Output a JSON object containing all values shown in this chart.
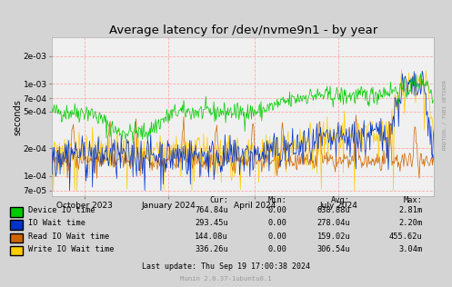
{
  "title": "Average latency for /dev/nvme9n1 - by year",
  "ylabel": "seconds",
  "background_color": "#d4d4d4",
  "plot_bg_color": "#f0f0f0",
  "grid_color": "#ffaaaa",
  "title_fontsize": 9.5,
  "legend_labels": [
    "Device IO time",
    "IO Wait time",
    "Read IO Wait time",
    "Write IO Wait time"
  ],
  "legend_colors": [
    "#00cc00",
    "#0033cc",
    "#cc6600",
    "#ffcc00"
  ],
  "line_colors": [
    "#00cc00",
    "#0033cc",
    "#cc6600",
    "#ffcc00"
  ],
  "stats_headers": [
    "Cur:",
    "Min:",
    "Avg:",
    "Max:"
  ],
  "stats_values": [
    [
      "764.84u",
      "0.00",
      "638.88u",
      "2.81m"
    ],
    [
      "293.45u",
      "0.00",
      "278.04u",
      "2.20m"
    ],
    [
      "144.08u",
      "0.00",
      "159.02u",
      "455.62u"
    ],
    [
      "336.26u",
      "0.00",
      "306.54u",
      "3.04m"
    ]
  ],
  "footer": "Last update: Thu Sep 19 17:00:38 2024",
  "munin_version": "Munin 2.0.37-1ubuntu0.1",
  "ytick_vals": [
    7e-05,
    0.0001,
    0.0002,
    0.0005,
    0.0007,
    0.001,
    0.002
  ],
  "ytick_labels": [
    "7e-05",
    "1e-04",
    "2e-04",
    "5e-04",
    "7e-04",
    "1e-03",
    "2e-03"
  ],
  "ymin": 6e-05,
  "ymax": 0.0032,
  "xtick_labels": [
    "October 2023",
    "January 2024",
    "April 2024",
    "July 2024"
  ],
  "xtick_pos": [
    0.085,
    0.305,
    0.53,
    0.75
  ],
  "right_label": "RRDTOOL / TOBI OETIKER",
  "seed": 42
}
